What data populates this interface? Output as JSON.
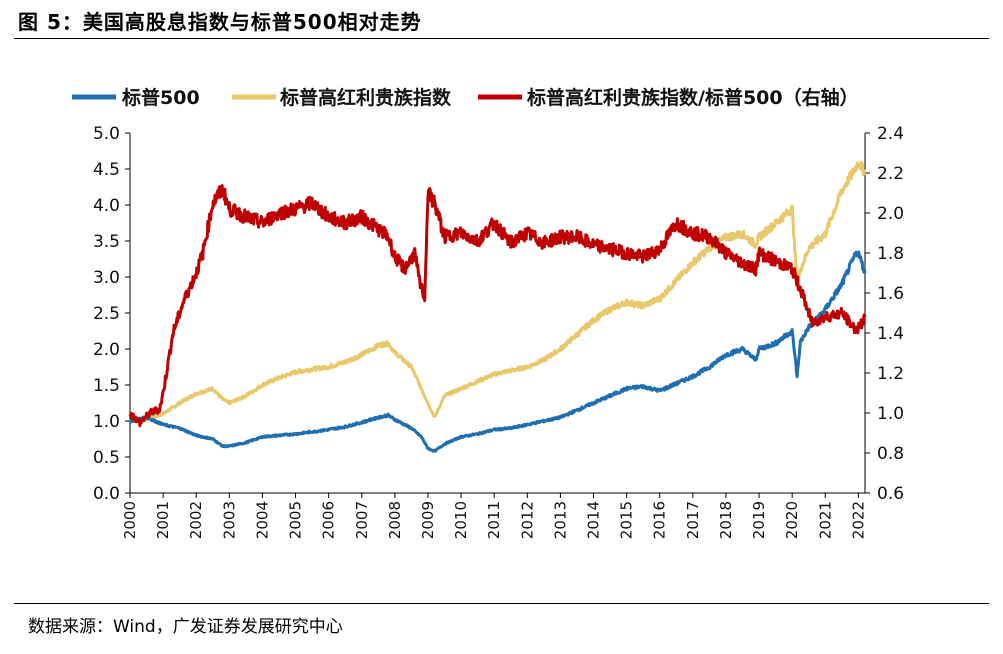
{
  "header": {
    "title": "图  5：美国高股息指数与标普500相对走势"
  },
  "footer": {
    "source": "数据来源：Wind，广发证券发展研究中心"
  },
  "colors": {
    "sp500": "#1F6FB0",
    "high_div": "#E8C86A",
    "ratio": "#C00000"
  },
  "chart_data": {
    "type": "line",
    "title": "",
    "legend_position": "top",
    "grid": false,
    "x_tick_labels": [
      "2000",
      "2001",
      "2002",
      "2003",
      "2004",
      "2005",
      "2006",
      "2007",
      "2008",
      "2009",
      "2010",
      "2011",
      "2012",
      "2013",
      "2014",
      "2015",
      "2016",
      "2017",
      "2018",
      "2019",
      "2020",
      "2021",
      "2022"
    ],
    "x_range": [
      2000,
      2022.2
    ],
    "y_left": {
      "range": [
        0.0,
        5.0
      ],
      "ticks": [
        "0.0",
        "0.5",
        "1.0",
        "1.5",
        "2.0",
        "2.5",
        "3.0",
        "3.5",
        "4.0",
        "4.5",
        "5.0"
      ]
    },
    "y_right": {
      "range": [
        0.6,
        2.4
      ],
      "ticks": [
        "0.6",
        "0.8",
        "1.0",
        "1.2",
        "1.4",
        "1.6",
        "1.8",
        "2.0",
        "2.2",
        "2.4"
      ],
      "label": "右轴"
    },
    "series": [
      {
        "name": "标普500",
        "axis": "left",
        "color_key": "sp500",
        "x": [
          2000,
          2000.5,
          2001,
          2001.5,
          2002,
          2002.5,
          2002.8,
          2003,
          2003.5,
          2004,
          2004.5,
          2005,
          2005.5,
          2006,
          2006.5,
          2007,
          2007.5,
          2007.8,
          2008,
          2008.5,
          2008.8,
          2009.0,
          2009.2,
          2009.5,
          2010,
          2010.5,
          2011,
          2011.5,
          2012,
          2012.5,
          2013,
          2013.5,
          2014,
          2014.5,
          2015,
          2015.5,
          2016,
          2016.5,
          2017,
          2017.5,
          2018,
          2018.5,
          2018.9,
          2019,
          2019.5,
          2020,
          2020.15,
          2020.25,
          2020.5,
          2021,
          2021.5,
          2021.9,
          2022,
          2022.2
        ],
        "values": [
          1.0,
          1.05,
          0.95,
          0.9,
          0.8,
          0.75,
          0.65,
          0.65,
          0.7,
          0.78,
          0.8,
          0.82,
          0.85,
          0.88,
          0.92,
          0.98,
          1.05,
          1.08,
          1.02,
          0.9,
          0.78,
          0.62,
          0.58,
          0.68,
          0.78,
          0.82,
          0.88,
          0.9,
          0.95,
          1.0,
          1.05,
          1.15,
          1.25,
          1.35,
          1.45,
          1.48,
          1.42,
          1.52,
          1.62,
          1.75,
          1.92,
          2.0,
          1.85,
          2.0,
          2.08,
          2.25,
          1.62,
          2.1,
          2.3,
          2.55,
          2.9,
          3.3,
          3.35,
          3.05
        ]
      },
      {
        "name": "标普高红利贵族指数",
        "axis": "left",
        "color_key": "high_div",
        "x": [
          2000,
          2000.5,
          2001,
          2001.5,
          2002,
          2002.5,
          2002.8,
          2003,
          2003.5,
          2004,
          2004.5,
          2005,
          2005.5,
          2006,
          2006.5,
          2007,
          2007.5,
          2007.8,
          2008,
          2008.5,
          2008.8,
          2009.0,
          2009.2,
          2009.5,
          2010,
          2010.5,
          2011,
          2011.5,
          2012,
          2012.5,
          2013,
          2013.5,
          2014,
          2014.5,
          2015,
          2015.5,
          2016,
          2016.5,
          2017,
          2017.5,
          2018,
          2018.5,
          2018.9,
          2019,
          2019.5,
          2020,
          2020.15,
          2020.25,
          2020.5,
          2021,
          2021.5,
          2021.9,
          2022,
          2022.2
        ],
        "values": [
          1.0,
          1.02,
          1.1,
          1.25,
          1.38,
          1.45,
          1.3,
          1.25,
          1.35,
          1.5,
          1.6,
          1.68,
          1.72,
          1.75,
          1.82,
          1.92,
          2.05,
          2.08,
          1.95,
          1.75,
          1.45,
          1.25,
          1.05,
          1.35,
          1.45,
          1.55,
          1.65,
          1.7,
          1.75,
          1.85,
          2.0,
          2.2,
          2.4,
          2.55,
          2.65,
          2.6,
          2.7,
          2.95,
          3.2,
          3.4,
          3.55,
          3.6,
          3.45,
          3.55,
          3.75,
          3.95,
          2.9,
          3.1,
          3.4,
          3.6,
          4.2,
          4.5,
          4.6,
          4.45
        ]
      },
      {
        "name": "标普高红利贵族指数/标普500（右轴）",
        "axis": "right",
        "color_key": "ratio",
        "x": [
          2000,
          2000.3,
          2000.6,
          2000.9,
          2001,
          2001.3,
          2001.6,
          2002,
          2002.2,
          2002.5,
          2002.8,
          2003,
          2003.5,
          2004,
          2004.5,
          2005,
          2005.5,
          2006,
          2006.5,
          2007,
          2007.5,
          2007.8,
          2008,
          2008.3,
          2008.6,
          2008.75,
          2008.9,
          2009.0,
          2009.2,
          2009.5,
          2010,
          2010.5,
          2011,
          2011.5,
          2012,
          2012.5,
          2013,
          2013.5,
          2014,
          2014.5,
          2015,
          2015.5,
          2016,
          2016.5,
          2017,
          2017.5,
          2018,
          2018.5,
          2018.9,
          2019,
          2019.5,
          2020,
          2020.3,
          2020.6,
          2021,
          2021.5,
          2021.9,
          2022,
          2022.2
        ],
        "values": [
          1.0,
          0.95,
          1.0,
          1.02,
          1.1,
          1.4,
          1.55,
          1.7,
          1.8,
          2.05,
          2.12,
          2.02,
          1.98,
          1.95,
          2.0,
          2.02,
          2.05,
          1.98,
          1.95,
          1.98,
          1.92,
          1.88,
          1.78,
          1.72,
          1.8,
          1.65,
          1.58,
          2.1,
          2.05,
          1.88,
          1.9,
          1.86,
          1.95,
          1.85,
          1.9,
          1.85,
          1.88,
          1.88,
          1.84,
          1.82,
          1.8,
          1.78,
          1.82,
          1.95,
          1.9,
          1.88,
          1.8,
          1.75,
          1.72,
          1.8,
          1.76,
          1.72,
          1.6,
          1.45,
          1.48,
          1.5,
          1.42,
          1.42,
          1.48
        ]
      }
    ]
  }
}
